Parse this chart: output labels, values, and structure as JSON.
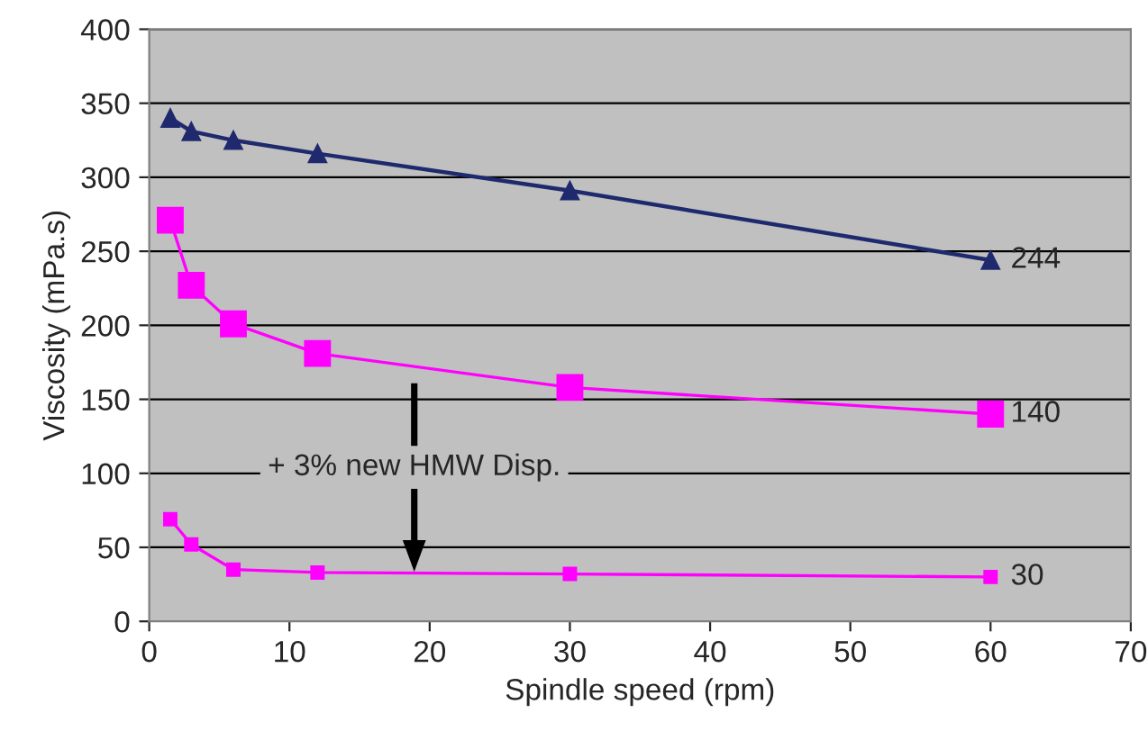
{
  "chart_data": {
    "type": "line",
    "xlabel": "Spindle speed (rpm)",
    "ylabel": "Viscosity (mPa.s)",
    "xlim": [
      0,
      70
    ],
    "xticks": [
      0,
      10,
      20,
      30,
      40,
      50,
      60,
      70
    ],
    "ylim": [
      0,
      400
    ],
    "yticks": [
      0,
      50,
      100,
      150,
      200,
      250,
      300,
      350,
      400
    ],
    "grid": "y",
    "x": [
      1.5,
      3,
      6,
      12,
      30,
      60
    ],
    "series": [
      {
        "color": "#1f2a6e",
        "marker": "triangle",
        "values": [
          340,
          331,
          325,
          316,
          291,
          244
        ],
        "value_labels": [
          null,
          null,
          null,
          null,
          null,
          "244"
        ]
      },
      {
        "color": "#ff00ff",
        "marker": "square",
        "values": [
          271,
          227,
          201,
          181,
          158,
          140
        ],
        "value_labels": [
          null,
          null,
          null,
          null,
          null,
          "140"
        ]
      },
      {
        "color": "#ff00ff",
        "marker": "square",
        "values": [
          69,
          52,
          35,
          33,
          32,
          30
        ],
        "value_labels": [
          null,
          null,
          null,
          null,
          null,
          "30"
        ]
      }
    ],
    "annotations": [
      "+ 3% new HMW Disp."
    ]
  }
}
